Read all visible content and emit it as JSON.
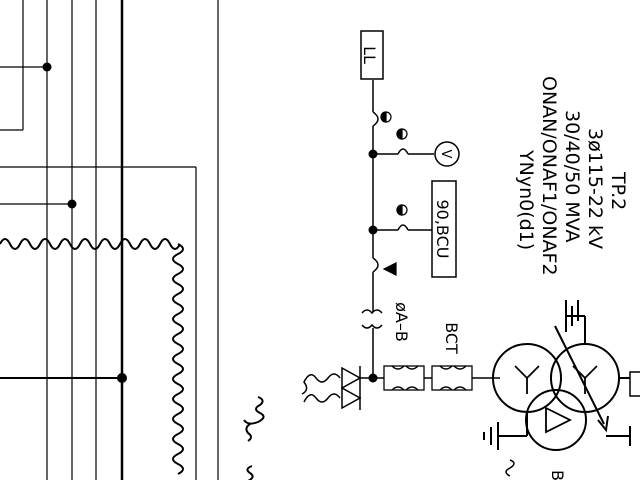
{
  "diagram": {
    "transformer": {
      "name": "TP.2",
      "voltage": "3ø115-22 kV",
      "rating": "30/40/50 MVA",
      "cooling": "ONAN/ONAF1/ONAF2",
      "vector_group": "YNyn0(d1)"
    },
    "labels": {
      "lightning_arrester": "LL",
      "voltmeter": "V",
      "relay_box": "90,BCU",
      "phase": "øA–B",
      "bct": "BCT",
      "b_partial": "B"
    },
    "colors": {
      "line": "#000000",
      "background": "#ffffff"
    }
  }
}
